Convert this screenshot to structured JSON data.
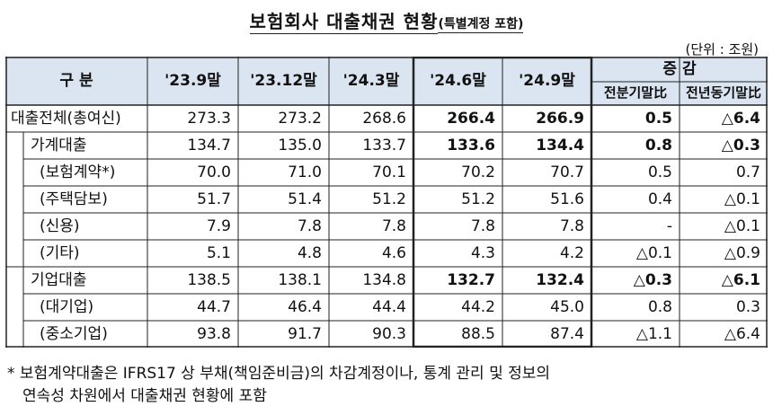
{
  "title": {
    "main": "보험회사 대출채권 현황",
    "sub": "(특별계정 포함)"
  },
  "unit": "(단위 : 조원)",
  "table": {
    "header": {
      "category": "구 분",
      "periods": [
        "'23.9말",
        "'23.12말",
        "'24.3말",
        "'24.6말",
        "'24.9말"
      ],
      "change_group": "증 감",
      "change_cols": [
        "전분기말比",
        "전년동기말比"
      ]
    },
    "rows": [
      {
        "label": "대출전체(총여신)",
        "values": [
          "273.3",
          "273.2",
          "268.6",
          "266.4",
          "266.9"
        ],
        "changes": [
          "0.5",
          "△6.4"
        ]
      },
      {
        "label": "가계대출",
        "values": [
          "134.7",
          "135.0",
          "133.7",
          "133.6",
          "134.4"
        ],
        "changes": [
          "0.8",
          "△0.3"
        ]
      },
      {
        "label": "(보험계약*)",
        "values": [
          "70.0",
          "71.0",
          "70.1",
          "70.2",
          "70.7"
        ],
        "changes": [
          "0.5",
          "0.7"
        ]
      },
      {
        "label": "(주택담보)",
        "values": [
          "51.7",
          "51.4",
          "51.2",
          "51.2",
          "51.6"
        ],
        "changes": [
          "0.4",
          "△0.1"
        ]
      },
      {
        "label": "(신용)",
        "values": [
          "7.9",
          "7.8",
          "7.8",
          "7.8",
          "7.8"
        ],
        "changes": [
          "-",
          "△0.1"
        ]
      },
      {
        "label": "(기타)",
        "values": [
          "5.1",
          "4.8",
          "4.6",
          "4.3",
          "4.2"
        ],
        "changes": [
          "△0.1",
          "△0.9"
        ]
      },
      {
        "label": "기업대출",
        "values": [
          "138.5",
          "138.1",
          "134.8",
          "132.7",
          "132.4"
        ],
        "changes": [
          "△0.3",
          "△6.1"
        ]
      },
      {
        "label": "(대기업)",
        "values": [
          "44.7",
          "46.4",
          "44.4",
          "44.2",
          "45.0"
        ],
        "changes": [
          "0.8",
          "0.3"
        ]
      },
      {
        "label": "(중소기업)",
        "values": [
          "93.8",
          "91.7",
          "90.3",
          "88.5",
          "87.4"
        ],
        "changes": [
          "△1.1",
          "△6.4"
        ]
      }
    ]
  },
  "footnote": {
    "line1": "* 보험계약대출은 IFRS17 상 부채(책임준비금)의 차감계정이나, 통계 관리 및 정보의",
    "line2": "연속성 차원에서 대출채권 현황에 포함"
  },
  "colors": {
    "header_bg": "#dbe5f1",
    "border": "#222222"
  }
}
